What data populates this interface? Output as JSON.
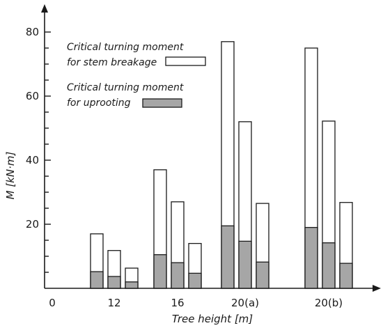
{
  "chart_data": {
    "type": "bar",
    "xlabel": "Tree height [m]",
    "ylabel": "M [kN·m]",
    "ylim": [
      0,
      80
    ],
    "yticks": [
      20,
      40,
      60,
      80
    ],
    "origin_label": "0",
    "groups": [
      {
        "label": "12",
        "bars": [
          {
            "stem": 17,
            "uproot": 5.2
          },
          {
            "stem": 11.8,
            "uproot": 3.7
          },
          {
            "stem": 6.3,
            "uproot": 2
          }
        ]
      },
      {
        "label": "16",
        "bars": [
          {
            "stem": 37,
            "uproot": 10.5
          },
          {
            "stem": 27,
            "uproot": 8
          },
          {
            "stem": 14,
            "uproot": 4.7
          }
        ]
      },
      {
        "label": "20(a)",
        "bars": [
          {
            "stem": 77,
            "uproot": 19.5
          },
          {
            "stem": 52,
            "uproot": 14.7
          },
          {
            "stem": 26.5,
            "uproot": 8.2
          }
        ]
      },
      {
        "label": "20(b)",
        "bars": [
          {
            "stem": 75,
            "uproot": 19
          },
          {
            "stem": 52.2,
            "uproot": 14.2
          },
          {
            "stem": 26.8,
            "uproot": 7.8
          }
        ]
      }
    ],
    "series": [
      {
        "name": "Critical turning moment for stem breakage",
        "legend_lines": [
          "Critical turning moment",
          "for stem breakage"
        ],
        "color": "#ffffff"
      },
      {
        "name": "Critical turning moment for uprooting",
        "legend_lines": [
          "Critical turning moment",
          "for uprooting"
        ],
        "color": "#a6a6a6"
      }
    ]
  }
}
